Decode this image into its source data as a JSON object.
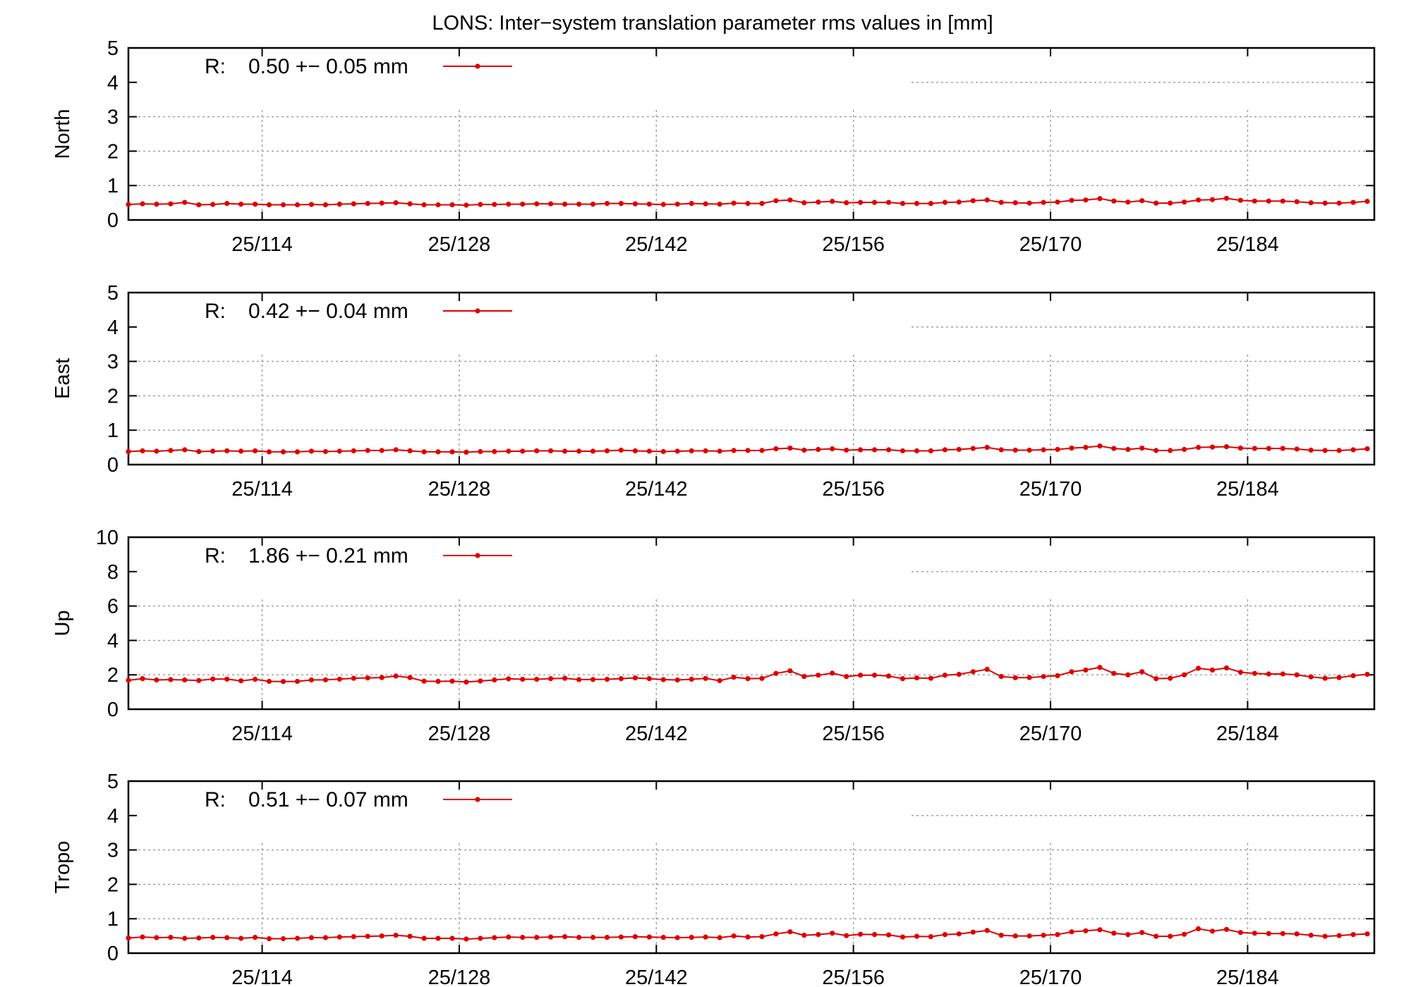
{
  "chart_data": [
    {
      "type": "line",
      "title": "LONS: Inter−system translation parameter rms values in [mm]",
      "ylabel": "North",
      "ylim": [
        0,
        5
      ],
      "yticks": [
        "0",
        "1",
        "2",
        "3",
        "4",
        "5"
      ],
      "xlim": [
        104.5,
        193
      ],
      "xticks": [
        {
          "value": 114,
          "label": "25/114"
        },
        {
          "value": 128,
          "label": "25/128"
        },
        {
          "value": 142,
          "label": "25/142"
        },
        {
          "value": 156,
          "label": "25/156"
        },
        {
          "value": 170,
          "label": "25/170"
        },
        {
          "value": 184,
          "label": "25/184"
        }
      ],
      "grid": true,
      "legend_position": "top-left",
      "color": "#dd0000",
      "series": [
        {
          "legend_prefix": "R:",
          "name": "0.50 +− 0.05 mm",
          "x_start": 104.5,
          "x_step": 1,
          "values": [
            0.45,
            0.47,
            0.46,
            0.47,
            0.51,
            0.44,
            0.45,
            0.48,
            0.46,
            0.46,
            0.44,
            0.44,
            0.44,
            0.45,
            0.44,
            0.46,
            0.47,
            0.48,
            0.49,
            0.5,
            0.47,
            0.44,
            0.44,
            0.44,
            0.43,
            0.45,
            0.45,
            0.46,
            0.46,
            0.47,
            0.47,
            0.46,
            0.46,
            0.46,
            0.48,
            0.48,
            0.47,
            0.46,
            0.45,
            0.46,
            0.48,
            0.47,
            0.46,
            0.49,
            0.48,
            0.48,
            0.56,
            0.58,
            0.5,
            0.52,
            0.54,
            0.5,
            0.51,
            0.51,
            0.51,
            0.48,
            0.48,
            0.48,
            0.51,
            0.52,
            0.56,
            0.58,
            0.51,
            0.5,
            0.49,
            0.51,
            0.52,
            0.57,
            0.58,
            0.62,
            0.55,
            0.52,
            0.56,
            0.49,
            0.49,
            0.52,
            0.58,
            0.59,
            0.63,
            0.57,
            0.55,
            0.55,
            0.55,
            0.53,
            0.5,
            0.49,
            0.49,
            0.51,
            0.54
          ]
        }
      ]
    },
    {
      "type": "line",
      "ylabel": "East",
      "ylim": [
        0,
        5
      ],
      "yticks": [
        "0",
        "1",
        "2",
        "3",
        "4",
        "5"
      ],
      "xlim": [
        104.5,
        193
      ],
      "xticks": [
        {
          "value": 114,
          "label": "25/114"
        },
        {
          "value": 128,
          "label": "25/128"
        },
        {
          "value": 142,
          "label": "25/142"
        },
        {
          "value": 156,
          "label": "25/156"
        },
        {
          "value": 170,
          "label": "25/170"
        },
        {
          "value": 184,
          "label": "25/184"
        }
      ],
      "grid": true,
      "legend_position": "top-left",
      "color": "#dd0000",
      "series": [
        {
          "legend_prefix": "R:",
          "name": "0.42 +− 0.04 mm",
          "x_start": 104.5,
          "x_step": 1,
          "values": [
            0.38,
            0.4,
            0.39,
            0.41,
            0.43,
            0.38,
            0.39,
            0.4,
            0.39,
            0.4,
            0.37,
            0.37,
            0.37,
            0.39,
            0.38,
            0.39,
            0.4,
            0.41,
            0.41,
            0.43,
            0.4,
            0.37,
            0.37,
            0.37,
            0.36,
            0.38,
            0.38,
            0.39,
            0.39,
            0.4,
            0.4,
            0.39,
            0.39,
            0.39,
            0.4,
            0.42,
            0.4,
            0.39,
            0.38,
            0.39,
            0.4,
            0.4,
            0.39,
            0.41,
            0.41,
            0.41,
            0.46,
            0.48,
            0.42,
            0.44,
            0.46,
            0.42,
            0.43,
            0.43,
            0.43,
            0.4,
            0.4,
            0.4,
            0.43,
            0.44,
            0.47,
            0.5,
            0.43,
            0.42,
            0.42,
            0.43,
            0.44,
            0.48,
            0.5,
            0.54,
            0.47,
            0.44,
            0.48,
            0.41,
            0.41,
            0.44,
            0.5,
            0.51,
            0.52,
            0.48,
            0.47,
            0.47,
            0.47,
            0.45,
            0.42,
            0.41,
            0.41,
            0.43,
            0.46
          ]
        }
      ]
    },
    {
      "type": "line",
      "ylabel": "Up",
      "ylim": [
        0,
        10
      ],
      "yticks": [
        "0",
        "2",
        "4",
        "6",
        "8",
        "10"
      ],
      "xlim": [
        104.5,
        193
      ],
      "xticks": [
        {
          "value": 114,
          "label": "25/114"
        },
        {
          "value": 128,
          "label": "25/128"
        },
        {
          "value": 142,
          "label": "25/142"
        },
        {
          "value": 156,
          "label": "25/156"
        },
        {
          "value": 170,
          "label": "25/170"
        },
        {
          "value": 184,
          "label": "25/184"
        }
      ],
      "grid": true,
      "legend_position": "top-left",
      "color": "#dd0000",
      "series": [
        {
          "legend_prefix": "R:",
          "name": "1.86 +− 0.21 mm",
          "x_start": 104.5,
          "x_step": 1,
          "values": [
            1.68,
            1.78,
            1.7,
            1.72,
            1.7,
            1.67,
            1.76,
            1.75,
            1.65,
            1.74,
            1.62,
            1.61,
            1.62,
            1.7,
            1.71,
            1.75,
            1.8,
            1.82,
            1.84,
            1.93,
            1.84,
            1.63,
            1.62,
            1.63,
            1.58,
            1.64,
            1.7,
            1.77,
            1.74,
            1.74,
            1.78,
            1.8,
            1.72,
            1.73,
            1.74,
            1.78,
            1.82,
            1.78,
            1.72,
            1.7,
            1.74,
            1.79,
            1.66,
            1.86,
            1.78,
            1.79,
            2.08,
            2.23,
            1.9,
            1.98,
            2.1,
            1.9,
            1.98,
            1.98,
            1.93,
            1.78,
            1.82,
            1.8,
            1.98,
            2.03,
            2.18,
            2.32,
            1.9,
            1.83,
            1.84,
            1.9,
            1.95,
            2.18,
            2.28,
            2.43,
            2.08,
            2.0,
            2.18,
            1.78,
            1.8,
            2.0,
            2.38,
            2.28,
            2.4,
            2.15,
            2.08,
            2.05,
            2.05,
            2.0,
            1.88,
            1.8,
            1.84,
            1.95,
            2.03
          ]
        }
      ]
    },
    {
      "type": "line",
      "ylabel": "Tropo",
      "ylim": [
        0,
        5
      ],
      "yticks": [
        "0",
        "1",
        "2",
        "3",
        "4",
        "5"
      ],
      "xlim": [
        104.5,
        193
      ],
      "xticks": [
        {
          "value": 114,
          "label": "25/114"
        },
        {
          "value": 128,
          "label": "25/128"
        },
        {
          "value": 142,
          "label": "25/142"
        },
        {
          "value": 156,
          "label": "25/156"
        },
        {
          "value": 170,
          "label": "25/170"
        },
        {
          "value": 184,
          "label": "25/184"
        }
      ],
      "grid": true,
      "legend_position": "top-left",
      "color": "#dd0000",
      "series": [
        {
          "legend_prefix": "R:",
          "name": "0.51 +− 0.07 mm",
          "x_start": 104.5,
          "x_step": 1,
          "values": [
            0.44,
            0.47,
            0.45,
            0.46,
            0.43,
            0.44,
            0.46,
            0.45,
            0.43,
            0.46,
            0.42,
            0.42,
            0.43,
            0.45,
            0.45,
            0.47,
            0.48,
            0.49,
            0.5,
            0.52,
            0.49,
            0.43,
            0.43,
            0.43,
            0.41,
            0.43,
            0.45,
            0.47,
            0.46,
            0.46,
            0.47,
            0.48,
            0.46,
            0.46,
            0.46,
            0.47,
            0.48,
            0.47,
            0.46,
            0.45,
            0.46,
            0.47,
            0.45,
            0.5,
            0.47,
            0.48,
            0.56,
            0.62,
            0.52,
            0.54,
            0.58,
            0.51,
            0.55,
            0.54,
            0.53,
            0.47,
            0.49,
            0.48,
            0.54,
            0.56,
            0.61,
            0.66,
            0.52,
            0.5,
            0.5,
            0.52,
            0.54,
            0.62,
            0.65,
            0.68,
            0.58,
            0.54,
            0.6,
            0.49,
            0.49,
            0.55,
            0.71,
            0.64,
            0.69,
            0.6,
            0.58,
            0.57,
            0.57,
            0.56,
            0.52,
            0.49,
            0.51,
            0.54,
            0.56
          ]
        }
      ]
    }
  ]
}
